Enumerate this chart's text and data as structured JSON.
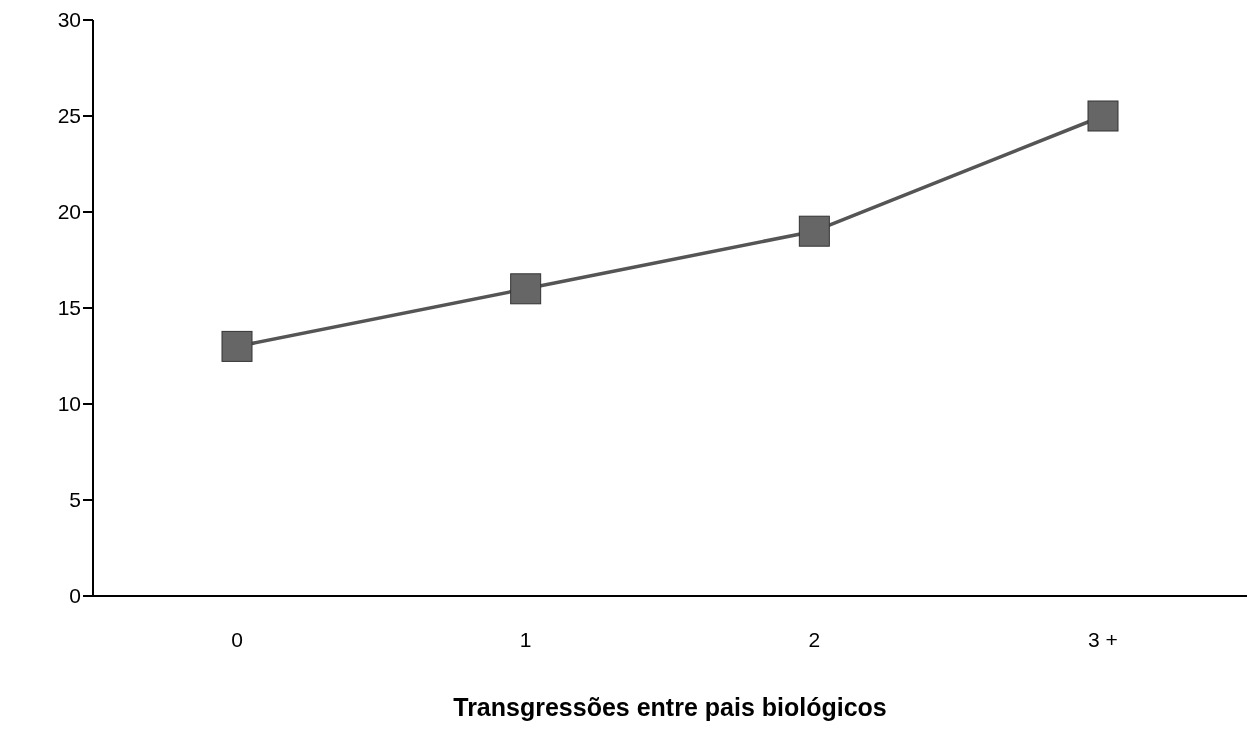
{
  "chart_data": {
    "type": "line",
    "xlabel": "Transgressões entre pais biológicos",
    "categories": [
      "0",
      "1",
      "2",
      "3 +"
    ],
    "series": [
      {
        "color": "#666666",
        "values": [
          13,
          16,
          19,
          25
        ]
      }
    ],
    "ylim": [
      0,
      30
    ],
    "yticks": [
      0,
      5,
      10,
      15,
      20,
      25,
      30
    ],
    "grid": false,
    "legend": false,
    "marker": "square",
    "line_style": "solid"
  }
}
